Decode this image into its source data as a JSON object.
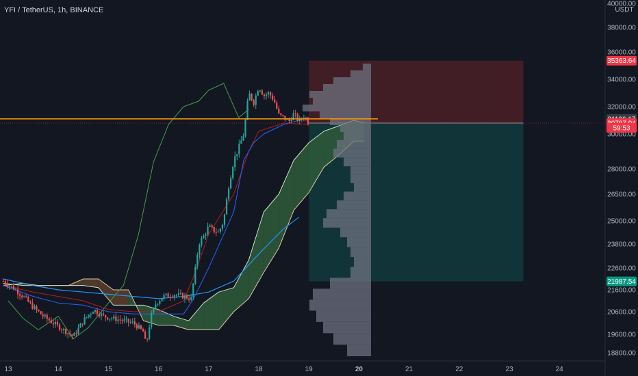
{
  "header": {
    "symbol": "YFI / TetherUS, 1h, BINANCE"
  },
  "price_axis": {
    "currency": "USDT"
  },
  "colors": {
    "background": "#131722",
    "up": "#26a69a",
    "down": "#ef5350",
    "horizontal_line": "#ff9800",
    "stop_zone": "#4a2027",
    "target_zone": "#12373b",
    "cloud_bull": "#2f5a3a",
    "cloud_bear": "#5c3e2e",
    "volume_profile": "#6e7180",
    "tenkan": "#2962ff",
    "kijun": "#b71c1c",
    "chikou": "#43a047",
    "ema": "#2196f3"
  },
  "chart_data": {
    "type": "candlestick",
    "title": "YFI / TetherUS, 1h, BINANCE",
    "y_axis": {
      "min": 18300,
      "max": 40400,
      "ticks": [
        40000,
        38000,
        36000,
        34000,
        32000,
        30000,
        28000,
        26500,
        25000,
        23800,
        22600,
        21600,
        20600,
        19600,
        18800
      ],
      "tick_labels": [
        "40000.00",
        "38000.00",
        "36000.00",
        "34000.00",
        "32000.00",
        "30000.00",
        "28000.00",
        "26500.00",
        "25000.00",
        "23800.00",
        "22600.00",
        "21600.00",
        "20600.00",
        "19600.00",
        "18800.00"
      ]
    },
    "x_axis": {
      "days": [
        13,
        14,
        15,
        16,
        17,
        18,
        19,
        20,
        21,
        22,
        23,
        24
      ],
      "bold_day": 20
    },
    "price_tags": [
      {
        "label": "35363.64",
        "value": 35363.64,
        "color": "#f23645"
      },
      {
        "label": "31106.17",
        "value": 31106.17,
        "color": "#363a45"
      },
      {
        "label": "30797.94",
        "value": 30797.94,
        "color": "#f23645"
      },
      {
        "label": "59:53",
        "value": 30450,
        "color": "#f23645"
      },
      {
        "label": "21987.54",
        "value": 21987.54,
        "color": "#089981"
      }
    ],
    "horizontal_line": {
      "value": 31106.17
    },
    "position": {
      "entry": 30797.94,
      "stop": 35363.64,
      "target": 21987.54,
      "start_day": 19,
      "end_day": 23.28
    },
    "close_path": [
      [
        12.9,
        22000
      ],
      [
        13.1,
        21700
      ],
      [
        13.3,
        21300
      ],
      [
        13.5,
        20800
      ],
      [
        13.7,
        20400
      ],
      [
        13.9,
        20100
      ],
      [
        14.1,
        19800
      ],
      [
        14.3,
        19500
      ],
      [
        14.5,
        20200
      ],
      [
        14.7,
        20700
      ],
      [
        14.9,
        20400
      ],
      [
        15.1,
        20300
      ],
      [
        15.3,
        20200
      ],
      [
        15.5,
        20100
      ],
      [
        15.7,
        19700
      ],
      [
        15.75,
        19100
      ],
      [
        15.85,
        20400
      ],
      [
        15.95,
        21000
      ],
      [
        16.1,
        21300
      ],
      [
        16.3,
        21400
      ],
      [
        16.5,
        21300
      ],
      [
        16.65,
        21200
      ],
      [
        16.75,
        22800
      ],
      [
        16.8,
        23800
      ],
      [
        16.9,
        24200
      ],
      [
        17,
        24700
      ],
      [
        17.1,
        24500
      ],
      [
        17.2,
        24400
      ],
      [
        17.3,
        25000
      ],
      [
        17.4,
        27000
      ],
      [
        17.5,
        28500
      ],
      [
        17.6,
        29200
      ],
      [
        17.7,
        30000
      ],
      [
        17.8,
        33000
      ],
      [
        17.9,
        32300
      ],
      [
        18,
        33500
      ],
      [
        18.1,
        32800
      ],
      [
        18.2,
        33000
      ],
      [
        18.3,
        32500
      ],
      [
        18.4,
        31400
      ],
      [
        18.5,
        31200
      ],
      [
        18.6,
        30900
      ],
      [
        18.7,
        31500
      ],
      [
        18.8,
        30900
      ],
      [
        18.9,
        31300
      ],
      [
        19,
        30800
      ]
    ],
    "ichimoku_cloud": {
      "x": [
        12.9,
        13.3,
        13.6,
        13.9,
        14.2,
        14.5,
        14.8,
        15.1,
        15.4,
        15.7,
        16,
        16.3,
        16.6,
        16.9,
        17.2,
        17.5,
        17.8,
        18.1,
        18.4,
        18.7,
        19,
        19.3,
        19.6,
        19.9,
        20.1
      ],
      "span_a": [
        21800,
        21900,
        21800,
        21800,
        21800,
        21800,
        21700,
        20900,
        20900,
        20900,
        20700,
        20400,
        20200,
        21000,
        21500,
        21700,
        23000,
        25500,
        26500,
        28500,
        29500,
        30200,
        30600,
        31000,
        30800
      ],
      "span_b": [
        21900,
        21800,
        21800,
        21800,
        21800,
        22100,
        22100,
        21600,
        21600,
        20200,
        20000,
        20000,
        19800,
        19800,
        19800,
        20600,
        21200,
        22400,
        23600,
        25600,
        26600,
        28100,
        28800,
        29600,
        29600
      ]
    },
    "kijun": {
      "x": [
        12.9,
        13.5,
        14,
        14.5,
        15,
        15.5,
        16,
        16.5,
        16.7,
        17,
        17.5,
        17.8,
        18,
        18.5,
        19
      ],
      "y": [
        21800,
        21500,
        21300,
        21100,
        20700,
        20600,
        20600,
        21100,
        22200,
        24300,
        26500,
        29000,
        30200,
        30800,
        30700
      ]
    },
    "tenkan": {
      "x": [
        12.9,
        13.5,
        14,
        14.5,
        15,
        15.5,
        16,
        16.5,
        16.7,
        17,
        17.5,
        17.7,
        17.9,
        18.1,
        18.5,
        19
      ],
      "y": [
        21800,
        21300,
        21000,
        20900,
        20600,
        20500,
        20500,
        20500,
        21200,
        22600,
        25500,
        28500,
        29500,
        30000,
        30700,
        31200
      ]
    },
    "chikou": {
      "x": [
        13,
        13.3,
        13.6,
        14,
        14.3,
        14.6,
        15,
        15.3,
        15.6,
        15.9,
        16.2,
        16.5,
        16.8,
        17,
        17.3,
        17.6,
        17.8
      ],
      "y": [
        21100,
        20300,
        19800,
        20400,
        19400,
        19900,
        21000,
        21800,
        24300,
        28400,
        30700,
        32000,
        32400,
        33200,
        33700,
        31200,
        31800
      ]
    },
    "ema": {
      "x": [
        12.9,
        13.5,
        14,
        14.5,
        15,
        15.5,
        16,
        16.5,
        17,
        17.5,
        18,
        18.5,
        18.8
      ],
      "y": [
        22100,
        21800,
        21600,
        21500,
        21400,
        21300,
        21200,
        21300,
        21500,
        22000,
        23300,
        24600,
        25200
      ]
    },
    "volume_profile": {
      "price_levels": [
        34900,
        34400,
        33900,
        33400,
        32900,
        32400,
        31900,
        31400,
        30900,
        30400,
        29900,
        29400,
        28900,
        28400,
        27900,
        27400,
        26900,
        26400,
        25900,
        25400,
        24900,
        24400,
        23900,
        23400,
        22900,
        22400,
        21900,
        21400,
        20900,
        20400,
        19900,
        19400,
        18900
      ],
      "relative_volume": [
        0.12,
        0.3,
        0.55,
        0.7,
        0.9,
        0.85,
        1.0,
        0.75,
        0.6,
        0.45,
        0.4,
        0.5,
        0.55,
        0.4,
        0.3,
        0.3,
        0.25,
        0.4,
        0.5,
        0.65,
        0.7,
        0.45,
        0.35,
        0.3,
        0.25,
        0.3,
        0.6,
        0.85,
        0.9,
        0.8,
        0.7,
        0.55,
        0.35
      ]
    }
  }
}
